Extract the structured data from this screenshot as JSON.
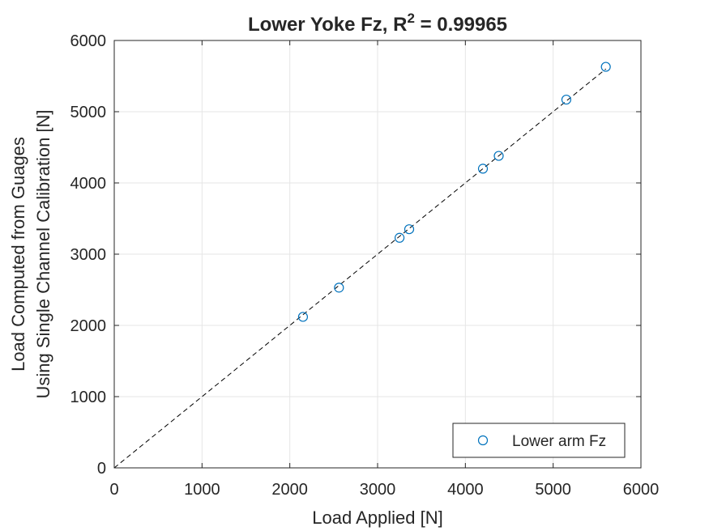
{
  "chart_data": {
    "type": "scatter",
    "title": "Lower Yoke Fz, R",
    "title_superscript": "2",
    "title_suffix": " = 0.99965",
    "xlabel": "Load Applied [N]",
    "ylabel_line1": "Load Computed from Guages",
    "ylabel_line2": "Using Single Channel Calibration [N]",
    "xlim": [
      0,
      6000
    ],
    "ylim": [
      0,
      6000
    ],
    "xticks": [
      "0",
      "1000",
      "2000",
      "3000",
      "4000",
      "5000",
      "6000"
    ],
    "yticks": [
      "0",
      "1000",
      "2000",
      "3000",
      "4000",
      "5000",
      "6000"
    ],
    "grid": true,
    "legend_position": "bottom-right",
    "series": [
      {
        "name": "Lower arm Fz",
        "marker": "circle",
        "color": "#0072BD",
        "x": [
          2150,
          2560,
          3250,
          3360,
          4200,
          4380,
          5150,
          5600
        ],
        "y": [
          2120,
          2530,
          3230,
          3350,
          4200,
          4380,
          5170,
          5630
        ]
      }
    ],
    "reference_line": {
      "style": "dashed",
      "color": "#000000",
      "x": [
        0,
        5600
      ],
      "y": [
        0,
        5600
      ]
    }
  }
}
